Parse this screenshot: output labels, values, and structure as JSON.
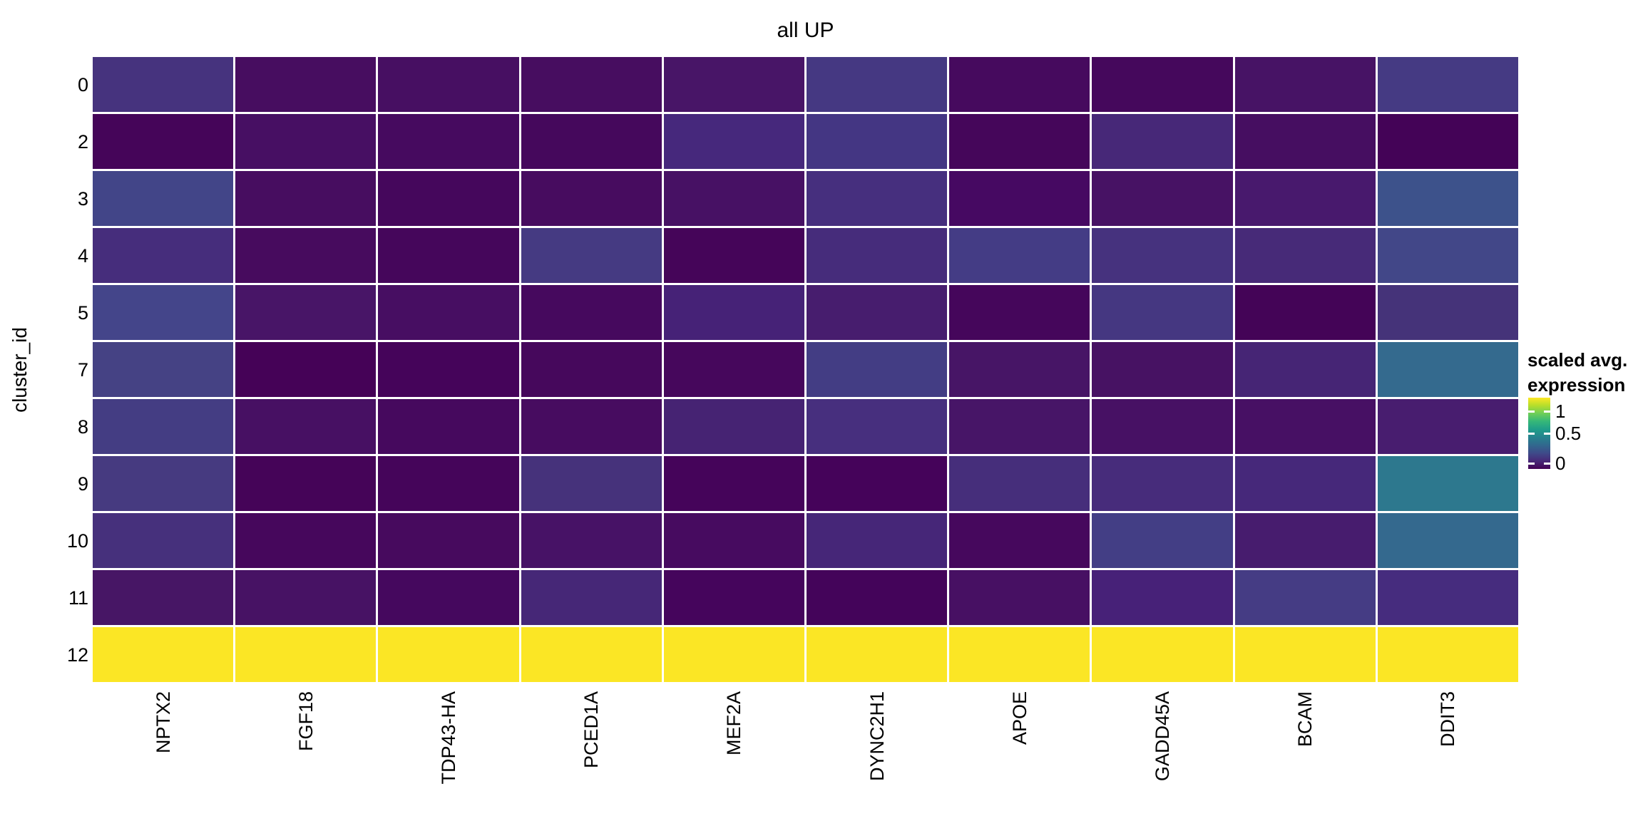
{
  "title": "all UP",
  "y_axis": {
    "label": "cluster_id"
  },
  "x_axis": {
    "label": ""
  },
  "legend": {
    "title_line1": "scaled avg.",
    "title_line2": "expression",
    "ticks": [
      "1",
      "0.5",
      "0"
    ],
    "gradient": [
      "#fde725",
      "#b5de2b",
      "#6ece58",
      "#35b779",
      "#1f9e89",
      "#26828e",
      "#31688e",
      "#3e4a89",
      "#482878",
      "#440154"
    ]
  },
  "chart_data": {
    "type": "heatmap",
    "title": "all UP",
    "xlabel": "",
    "ylabel": "cluster_id",
    "legend_title": "scaled avg. expression",
    "colormap": "viridis",
    "legend_tick_values": [
      1,
      0.5,
      0
    ],
    "columns": [
      "NPTX2",
      "FGF18",
      "TDP43-HA",
      "PCED1A",
      "MEF2A",
      "DYNC2H1",
      "APOE",
      "GADD45A",
      "BCAM",
      "DDIT3"
    ],
    "rows": [
      "0",
      "2",
      "3",
      "4",
      "5",
      "7",
      "8",
      "9",
      "10",
      "11",
      "12"
    ],
    "values": [
      [
        0.2,
        -0.03,
        -0.01,
        -0.03,
        0.03,
        0.25,
        -0.04,
        -0.06,
        0.03,
        0.25
      ],
      [
        -0.08,
        -0.01,
        -0.04,
        -0.06,
        0.14,
        0.24,
        -0.06,
        0.14,
        -0.03,
        -0.1
      ],
      [
        0.32,
        -0.03,
        -0.06,
        -0.03,
        0.01,
        0.18,
        -0.04,
        0.01,
        0.05,
        0.38
      ],
      [
        0.16,
        -0.04,
        -0.06,
        0.25,
        -0.08,
        0.16,
        0.27,
        0.2,
        0.14,
        0.34
      ],
      [
        0.32,
        0.03,
        -0.01,
        -0.04,
        0.1,
        0.07,
        -0.06,
        0.23,
        -0.1,
        0.21
      ],
      [
        0.3,
        -0.1,
        -0.08,
        -0.06,
        -0.06,
        0.27,
        0.03,
        0.01,
        0.12,
        0.52
      ],
      [
        0.27,
        -0.01,
        -0.04,
        -0.03,
        0.11,
        0.18,
        0.03,
        0.01,
        -0.01,
        0.07
      ],
      [
        0.25,
        -0.08,
        -0.08,
        0.2,
        -0.08,
        -0.08,
        0.17,
        0.16,
        0.14,
        0.6
      ],
      [
        0.18,
        -0.06,
        -0.04,
        0.01,
        -0.04,
        0.12,
        -0.06,
        0.27,
        0.07,
        0.52
      ],
      [
        0.03,
        0.01,
        -0.06,
        0.12,
        -0.08,
        -0.08,
        -0.01,
        0.1,
        0.27,
        0.16
      ],
      [
        1.26,
        1.26,
        1.26,
        1.26,
        1.26,
        1.26,
        1.26,
        1.26,
        1.26,
        1.26
      ]
    ],
    "colors": [
      [
        "#46337e",
        "#470d60",
        "#470f62",
        "#470d60",
        "#481567",
        "#453882",
        "#460a5e",
        "#45085c",
        "#471365",
        "#453a83"
      ],
      [
        "#450559",
        "#470f63",
        "#460a5f",
        "#45085c",
        "#46287c",
        "#443683",
        "#45065a",
        "#472878",
        "#460e61",
        "#440357"
      ],
      [
        "#424588",
        "#470d60",
        "#45075c",
        "#470c5f",
        "#471164",
        "#462f7e",
        "#460962",
        "#471264",
        "#48196d",
        "#3d528b"
      ],
      [
        "#462d7c",
        "#470b5e",
        "#45065b",
        "#453a82",
        "#450559",
        "#462c7b",
        "#443c85",
        "#46327e",
        "#472a78",
        "#424788"
      ],
      [
        "#44458a",
        "#481567",
        "#470e62",
        "#46095e",
        "#462277",
        "#471d6e",
        "#45065b",
        "#453781",
        "#440457",
        "#453379"
      ],
      [
        "#454284",
        "#450257",
        "#45045a",
        "#46085c",
        "#46075c",
        "#433d84",
        "#471566",
        "#471263",
        "#462575",
        "#346a8e"
      ],
      [
        "#443d83",
        "#471063",
        "#46095e",
        "#470c60",
        "#462373",
        "#472f7e",
        "#471567",
        "#471164",
        "#471064",
        "#481d6f"
      ],
      [
        "#463a80",
        "#450458",
        "#45055a",
        "#46327b",
        "#45045a",
        "#45035a",
        "#462e7b",
        "#472c7b",
        "#46287a",
        "#2d788e"
      ],
      [
        "#46307c",
        "#46075c",
        "#470a5e",
        "#471266",
        "#470b60",
        "#462678",
        "#46085d",
        "#433e85",
        "#471c6e",
        "#34698e"
      ],
      [
        "#471665",
        "#471264",
        "#45085e",
        "#462777",
        "#45055c",
        "#44045a",
        "#471063",
        "#472178",
        "#453c84",
        "#462c7e"
      ],
      [
        "#fbe625",
        "#fbe625",
        "#fbe625",
        "#fbe625",
        "#fbe625",
        "#fbe625",
        "#fbe625",
        "#fbe625",
        "#fbe625",
        "#fbe625"
      ]
    ]
  }
}
